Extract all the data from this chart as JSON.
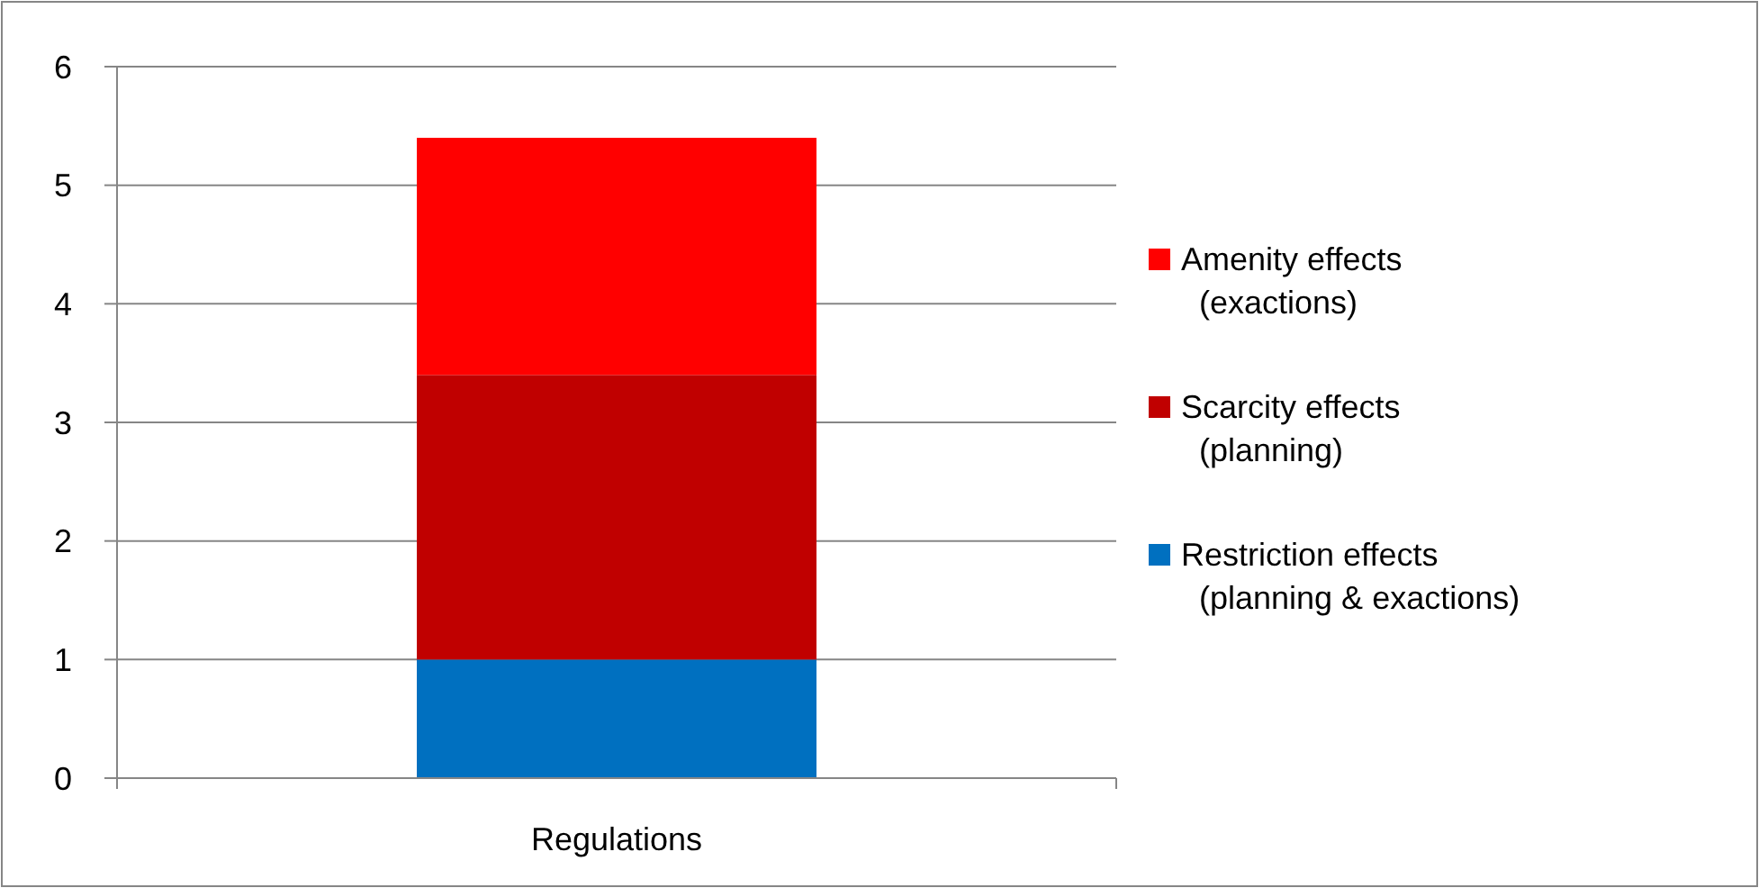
{
  "chart_data": {
    "type": "bar",
    "stacked": true,
    "categories": [
      "Regulations"
    ],
    "series": [
      {
        "name": "Restriction effects (planning & exactions)",
        "color": "#0070c0",
        "values": [
          1
        ]
      },
      {
        "name": "Scarcity effects (planning)",
        "color": "#c00000",
        "values": [
          2.4
        ]
      },
      {
        "name": "Amenity effects (exactions)",
        "color": "#ff0000",
        "values": [
          2
        ]
      }
    ],
    "ylim": [
      0,
      6
    ],
    "yticks": [
      0,
      1,
      2,
      3,
      4,
      5,
      6
    ],
    "grid": "y",
    "legend": "right"
  }
}
